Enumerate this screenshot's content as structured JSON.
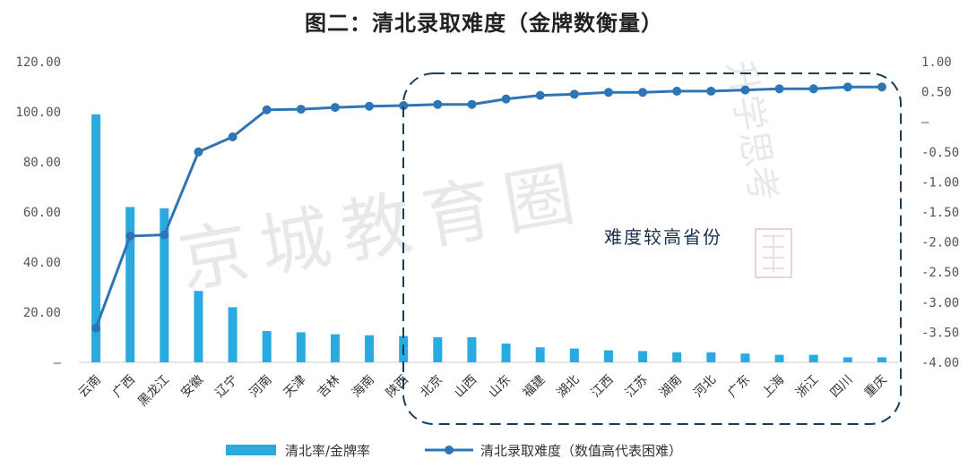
{
  "chart_data": {
    "type": "bar+line",
    "title": "图二：清北录取难度（金牌数衡量）",
    "categories": [
      "云南",
      "广西",
      "黑龙江",
      "安徽",
      "辽宁",
      "河南",
      "天津",
      "吉林",
      "海南",
      "陕西",
      "北京",
      "山西",
      "山东",
      "福建",
      "湖北",
      "江西",
      "江苏",
      "湖南",
      "河北",
      "广东",
      "上海",
      "浙江",
      "四川",
      "重庆"
    ],
    "series": [
      {
        "name": "清北率/金牌率",
        "type": "bar",
        "axis": "left",
        "color": "#29abe2",
        "values": [
          99,
          62,
          61.5,
          28.5,
          22,
          12.5,
          12,
          11.2,
          10.8,
          10.5,
          10,
          10,
          7.5,
          6,
          5.5,
          4.8,
          4.5,
          4,
          4,
          3.5,
          3,
          3,
          2,
          2
        ]
      },
      {
        "name": "清北录取难度（数值高代表困难）",
        "type": "line",
        "axis": "right",
        "color": "#2e75b6",
        "values": [
          -3.43,
          -1.9,
          -1.88,
          -0.5,
          -0.25,
          0.2,
          0.21,
          0.24,
          0.26,
          0.27,
          0.29,
          0.29,
          0.38,
          0.44,
          0.46,
          0.49,
          0.49,
          0.51,
          0.51,
          0.53,
          0.55,
          0.55,
          0.58,
          0.58
        ]
      }
    ],
    "left_axis": {
      "ylim": [
        0,
        120
      ],
      "ticks": [
        "–",
        "20.00",
        "40.00",
        "60.00",
        "80.00",
        "100.00",
        "120.00"
      ]
    },
    "right_axis": {
      "ylim": [
        -4,
        1
      ],
      "ticks": [
        "-4.00",
        "-3.50",
        "-3.00",
        "-2.50",
        "-2.00",
        "-1.50",
        "-1.00",
        "-0.50",
        "–",
        "0.50",
        "1.00"
      ]
    },
    "annotation": "难度较高省份",
    "legend_position": "bottom",
    "grid": false
  },
  "watermark": {
    "main": "京城教育圈",
    "side": "升学思考"
  },
  "colors": {
    "bar": "#29abe2",
    "line": "#2e75b6",
    "highlight_box": "#1b3d5a"
  }
}
